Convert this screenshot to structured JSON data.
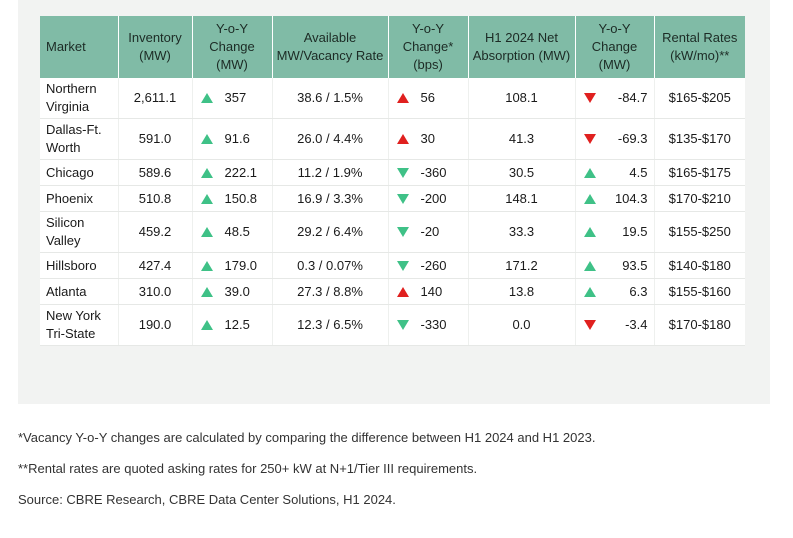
{
  "table": {
    "headers": [
      "Market",
      "Inventory (MW)",
      "Y-o-Y Change (MW)",
      "Available MW/Vacancy Rate",
      "Y-o-Y Change* (bps)",
      "H1 2024 Net Absorption (MW)",
      "Y-o-Y Change (MW)",
      "Rental Rates (kW/mo)**"
    ],
    "rows": [
      {
        "market": "Northern Virginia",
        "inventory": "2,611.1",
        "yoy_mw": "357",
        "yoy_mw_dir": "up",
        "available": "38.6 / 1.5%",
        "yoy_bps": "56",
        "yoy_bps_dir": "up-red",
        "absorption": "108.1",
        "abs_yoy": "-84.7",
        "abs_yoy_dir": "down-red",
        "rates": "$165-$205"
      },
      {
        "market": "Dallas-Ft. Worth",
        "inventory": "591.0",
        "yoy_mw": "91.6",
        "yoy_mw_dir": "up",
        "available": "26.0 / 4.4%",
        "yoy_bps": "30",
        "yoy_bps_dir": "up-red",
        "absorption": "41.3",
        "abs_yoy": "-69.3",
        "abs_yoy_dir": "down-red",
        "rates": "$135-$170"
      },
      {
        "market": "Chicago",
        "inventory": "589.6",
        "yoy_mw": "222.1",
        "yoy_mw_dir": "up",
        "available": "11.2 / 1.9%",
        "yoy_bps": "-360",
        "yoy_bps_dir": "down-green",
        "absorption": "30.5",
        "abs_yoy": "4.5",
        "abs_yoy_dir": "up",
        "rates": "$165-$175"
      },
      {
        "market": "Phoenix",
        "inventory": "510.8",
        "yoy_mw": "150.8",
        "yoy_mw_dir": "up",
        "available": "16.9 / 3.3%",
        "yoy_bps": "-200",
        "yoy_bps_dir": "down-green",
        "absorption": "148.1",
        "abs_yoy": "104.3",
        "abs_yoy_dir": "up",
        "rates": "$170-$210"
      },
      {
        "market": "Silicon Valley",
        "inventory": "459.2",
        "yoy_mw": "48.5",
        "yoy_mw_dir": "up",
        "available": "29.2 / 6.4%",
        "yoy_bps": "-20",
        "yoy_bps_dir": "down-green",
        "absorption": "33.3",
        "abs_yoy": "19.5",
        "abs_yoy_dir": "up",
        "rates": "$155-$250"
      },
      {
        "market": "Hillsboro",
        "inventory": "427.4",
        "yoy_mw": "179.0",
        "yoy_mw_dir": "up",
        "available": "0.3 / 0.07%",
        "yoy_bps": "-260",
        "yoy_bps_dir": "down-green",
        "absorption": "171.2",
        "abs_yoy": "93.5",
        "abs_yoy_dir": "up",
        "rates": "$140-$180"
      },
      {
        "market": "Atlanta",
        "inventory": "310.0",
        "yoy_mw": "39.0",
        "yoy_mw_dir": "up",
        "available": "27.3 / 8.8%",
        "yoy_bps": "140",
        "yoy_bps_dir": "up-red",
        "absorption": "13.8",
        "abs_yoy": "6.3",
        "abs_yoy_dir": "up",
        "rates": "$155-$160"
      },
      {
        "market": "New York Tri-State",
        "inventory": "190.0",
        "yoy_mw": "12.5",
        "yoy_mw_dir": "up",
        "available": "12.3 / 6.5%",
        "yoy_bps": "-330",
        "yoy_bps_dir": "down-green",
        "absorption": "0.0",
        "abs_yoy": "-3.4",
        "abs_yoy_dir": "down-red",
        "rates": "$170-$180"
      }
    ]
  },
  "footnotes": {
    "vacancy": "*Vacancy Y-o-Y changes are calculated by comparing the difference between H1 2024 and H1 2023.",
    "rental": "**Rental rates are quoted asking rates for 250+ kW at N+1/Tier III requirements.",
    "source": "Source: CBRE Research, CBRE Data Center Solutions, H1 2024."
  },
  "colors": {
    "header_bg": "#80bba6",
    "panel_bg": "#f2f3f2",
    "arrow_green": "#3fc187",
    "arrow_red": "#e0201f"
  },
  "icons": {
    "up": "triangle-up-green-icon",
    "down-green": "triangle-down-green-icon",
    "up-red": "triangle-up-red-icon",
    "down-red": "triangle-down-red-icon"
  }
}
